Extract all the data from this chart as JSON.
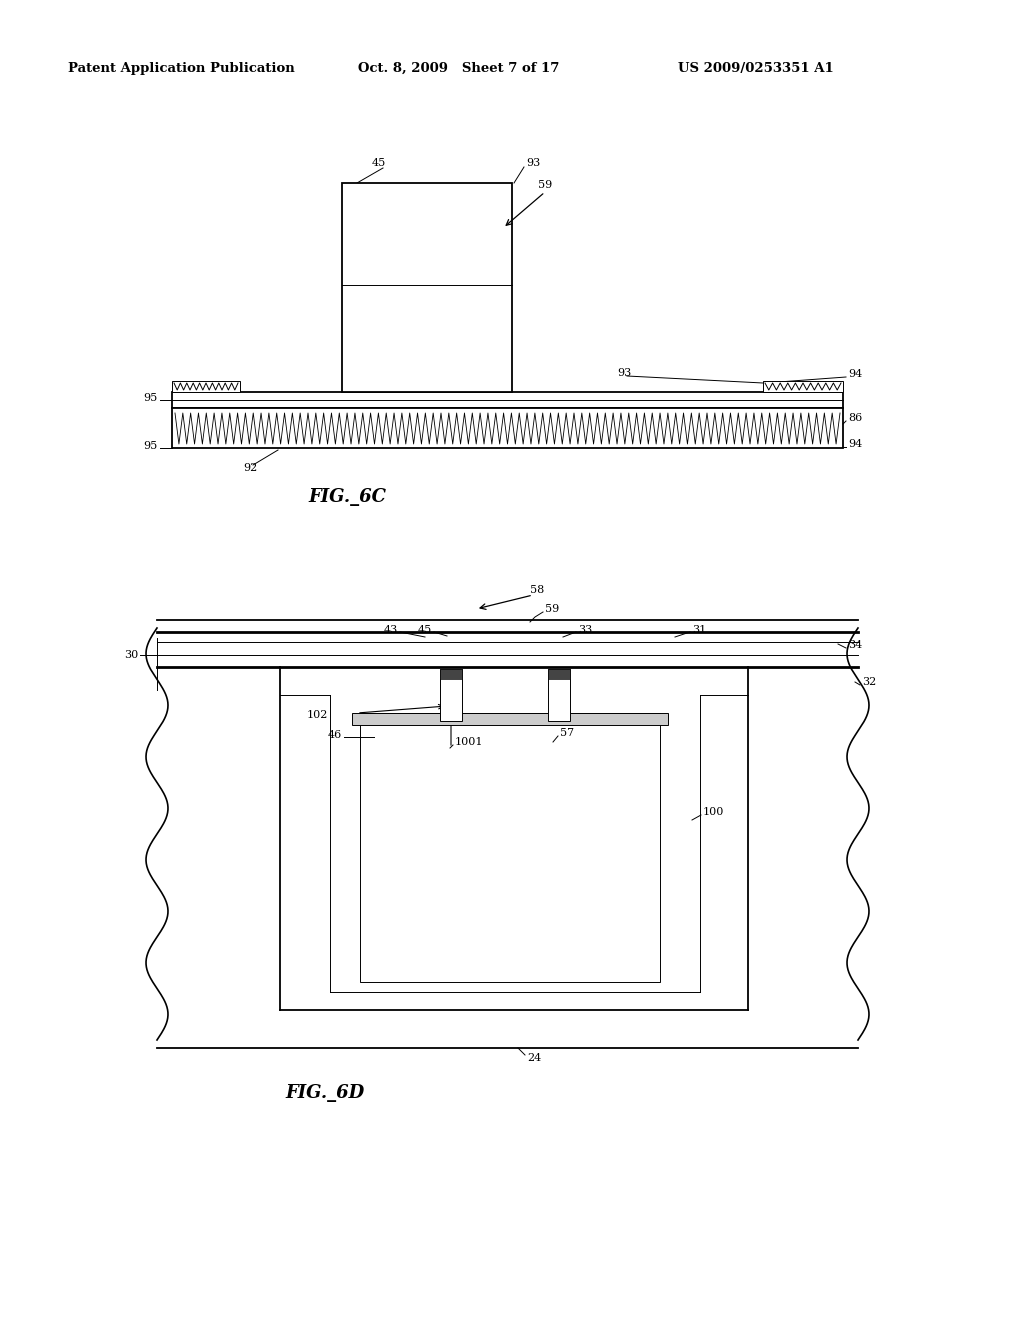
{
  "bg_color": "#ffffff",
  "header_left": "Patent Application Publication",
  "header_mid": "Oct. 8, 2009   Sheet 7 of 17",
  "header_right": "US 2009/0253351 A1",
  "fig6c_title": "FIG._6C",
  "fig6d_title": "FIG._6D",
  "lw0": 0.7,
  "lw1": 1.3,
  "lw2": 2.0,
  "label_fs": 8.0,
  "caption_fs": 13.0
}
